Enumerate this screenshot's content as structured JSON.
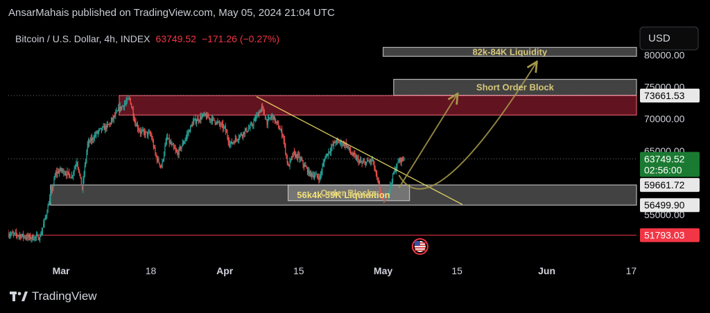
{
  "header": {
    "publisher_line": "AnsarMahais published on TradingView.com, May 05, 2024 21:04 UTC"
  },
  "footer": {
    "brand": "TradingView",
    "logo_icon": "tradingview-logo-icon"
  },
  "colors": {
    "background": "#000000",
    "up": "#26a69a",
    "down": "#ef5350",
    "resistance_zone": "#b2223a",
    "support_zone": "#9e9e9e",
    "annotation": "#d6c77a",
    "trendline": "#f4e36b",
    "current_price_tag": "#1b7a32",
    "red_tag": "#f23645"
  },
  "chart_data": {
    "type": "candlestick",
    "symbol": "Bitcoin / U.S. Dollar, 4h, INDEX",
    "last": "63749.52",
    "change": "−171.26 (−0.27%)",
    "currency_button": "USD",
    "price_axis": [
      {
        "value": 80000,
        "label": "80000.00"
      },
      {
        "value": 75000,
        "label": "75000.00"
      },
      {
        "value": 70000,
        "label": "70000.00"
      },
      {
        "value": 65000,
        "label": "65000.00"
      },
      {
        "value": 60000,
        "label": "60000.00"
      },
      {
        "value": 55000,
        "label": "55000.00"
      }
    ],
    "ylim": [
      48500,
      84500
    ],
    "time_axis": [
      "Mar",
      "18",
      "Apr",
      "15",
      "May",
      "15",
      "Jun",
      "17"
    ],
    "time_axis_dates": [
      "2024-03-01",
      "2024-03-18",
      "2024-04-01",
      "2024-04-15",
      "2024-05-01",
      "2024-05-15",
      "2024-06-01",
      "2024-06-17"
    ],
    "xlim": [
      "2024-02-20",
      "2024-06-18"
    ],
    "series_path": [
      [
        "2024-02-20",
        52000
      ],
      [
        "2024-02-22",
        51800
      ],
      [
        "2024-02-24",
        51400
      ],
      [
        "2024-02-26",
        51500
      ],
      [
        "2024-02-27",
        54500
      ],
      [
        "2024-02-28",
        58000
      ],
      [
        "2024-02-29",
        61500
      ],
      [
        "2024-03-01",
        62000
      ],
      [
        "2024-03-03",
        61000
      ],
      [
        "2024-03-04",
        63500
      ],
      [
        "2024-03-05",
        59000
      ],
      [
        "2024-03-06",
        66000
      ],
      [
        "2024-03-08",
        68000
      ],
      [
        "2024-03-10",
        69000
      ],
      [
        "2024-03-12",
        71500
      ],
      [
        "2024-03-14",
        73200
      ],
      [
        "2024-03-15",
        69500
      ],
      [
        "2024-03-16",
        68000
      ],
      [
        "2024-03-18",
        67500
      ],
      [
        "2024-03-19",
        64000
      ],
      [
        "2024-03-20",
        62500
      ],
      [
        "2024-03-21",
        67000
      ],
      [
        "2024-03-23",
        64500
      ],
      [
        "2024-03-24",
        66000
      ],
      [
        "2024-03-26",
        69500
      ],
      [
        "2024-03-28",
        70500
      ],
      [
        "2024-03-30",
        69800
      ],
      [
        "2024-04-01",
        68500
      ],
      [
        "2024-04-02",
        66000
      ],
      [
        "2024-04-04",
        67500
      ],
      [
        "2024-04-06",
        68800
      ],
      [
        "2024-04-08",
        71800
      ],
      [
        "2024-04-09",
        69500
      ],
      [
        "2024-04-10",
        70500
      ],
      [
        "2024-04-12",
        67500
      ],
      [
        "2024-04-13",
        62500
      ],
      [
        "2024-04-14",
        64500
      ],
      [
        "2024-04-15",
        64000
      ],
      [
        "2024-04-17",
        61500
      ],
      [
        "2024-04-19",
        60800
      ],
      [
        "2024-04-20",
        64000
      ],
      [
        "2024-04-22",
        66500
      ],
      [
        "2024-04-24",
        66000
      ],
      [
        "2024-04-25",
        64500
      ],
      [
        "2024-04-27",
        63000
      ],
      [
        "2024-04-29",
        63500
      ],
      [
        "2024-04-30",
        60000
      ],
      [
        "2024-05-01",
        57000
      ],
      [
        "2024-05-02",
        58500
      ],
      [
        "2024-05-03",
        61500
      ],
      [
        "2024-05-04",
        63500
      ],
      [
        "2024-05-05",
        63749.52
      ]
    ],
    "zones": [
      {
        "label": "82k-84K Liquidity",
        "from": 79800,
        "to": 81200,
        "x_start": "2024-05-01",
        "x_end": "2024-06-18",
        "style": "gray"
      },
      {
        "label": "Short Order Block",
        "from": 73700,
        "to": 76200,
        "x_start": "2024-05-03",
        "x_end": "2024-06-18",
        "style": "gray"
      },
      {
        "label": "",
        "from": 70600,
        "to": 73661.53,
        "x_start": "2024-03-12",
        "x_end": "2024-06-18",
        "style": "red"
      },
      {
        "label": "56k4k-59K Liquidition",
        "from": 56499.9,
        "to": 59661.72,
        "x_start": "2024-02-28",
        "x_end": "2024-06-18",
        "style": "gray"
      },
      {
        "label": "Order Blocks",
        "from": 57200,
        "to": 59661.72,
        "x_start": "2024-04-13",
        "x_end": "2024-05-06",
        "style": "gray"
      }
    ],
    "horizontal_lines": [
      {
        "value": 51793.03,
        "color": "#f23645"
      },
      {
        "value": 73661.53,
        "color": "#d1d4dc",
        "dotted": true
      },
      {
        "value": 63749.52,
        "color": "#d1d4dc",
        "dotted": true
      }
    ],
    "trendline": {
      "from": [
        "2024-04-07",
        73500
      ],
      "to": [
        "2024-05-16",
        56600
      ]
    },
    "projections": [
      {
        "from": [
          "2024-05-04",
          59200
        ],
        "to": [
          "2024-05-15",
          73800
        ]
      },
      {
        "from": [
          "2024-05-04",
          61200
        ],
        "via": [
          "2024-05-10",
          52500
        ],
        "to": [
          "2024-05-30",
          78800
        ]
      }
    ],
    "price_tags": [
      {
        "value": 73661.53,
        "label": "73661.53",
        "style": "light"
      },
      {
        "value": 63749.52,
        "label": "63749.52",
        "sub": "02:56:00",
        "style": "green"
      },
      {
        "value": 59661.72,
        "label": "59661.72",
        "style": "light"
      },
      {
        "value": 56499.9,
        "label": "56499.90",
        "style": "light"
      },
      {
        "value": 51793.03,
        "label": "51793.03",
        "style": "red"
      }
    ],
    "event_marker": {
      "date": "2024-05-08",
      "icon": "us-flag-icon"
    },
    "grid": false
  }
}
